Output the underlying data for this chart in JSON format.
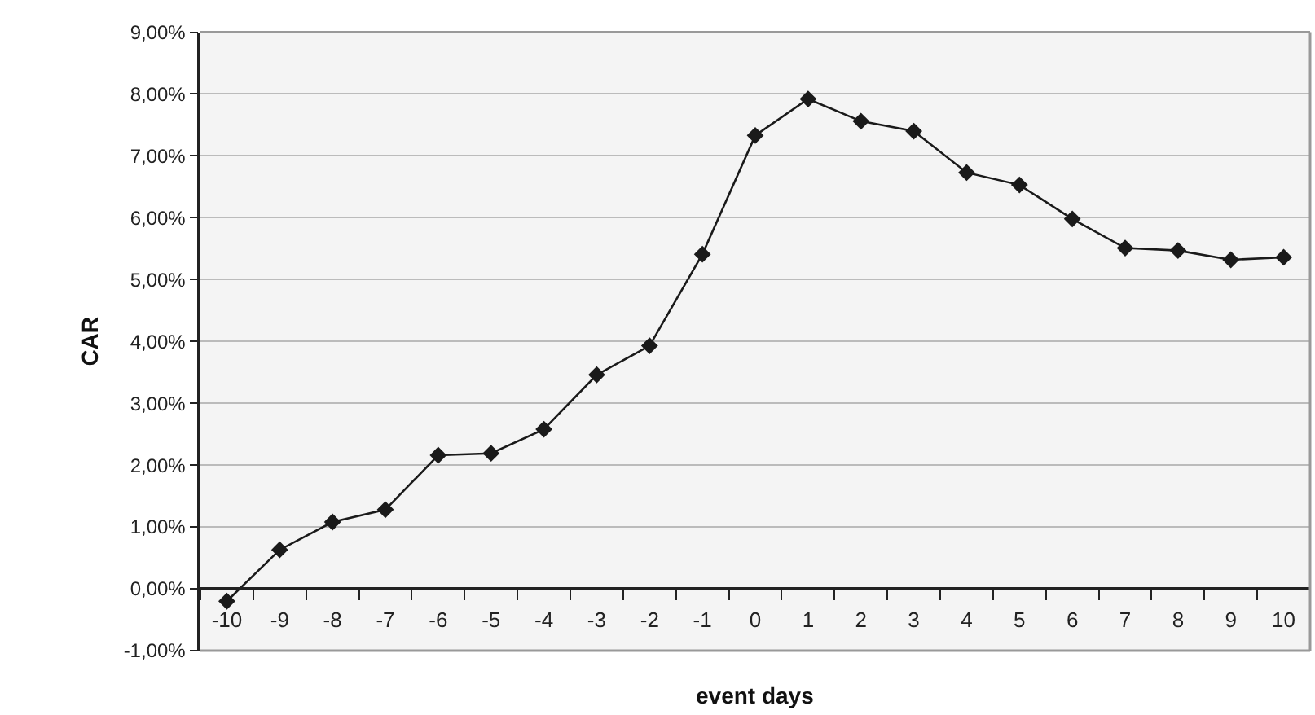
{
  "chart_data": {
    "type": "line",
    "xlabel": "event days",
    "ylabel": "CAR",
    "categories": [
      "-10",
      "-9",
      "-8",
      "-7",
      "-6",
      "-5",
      "-4",
      "-3",
      "-2",
      "-1",
      "0",
      "1",
      "2",
      "3",
      "4",
      "5",
      "6",
      "7",
      "8",
      "9",
      "10"
    ],
    "series": [
      {
        "color": "#1a1a1a",
        "values": [
          -0.2,
          0.63,
          1.08,
          1.28,
          2.16,
          2.19,
          2.58,
          3.46,
          3.93,
          5.41,
          7.33,
          7.92,
          7.56,
          7.4,
          6.73,
          6.53,
          5.98,
          5.51,
          5.47,
          5.32,
          5.36
        ]
      }
    ],
    "ylim": [
      -1,
      9
    ],
    "yticks": [
      {
        "value": -1,
        "label": "-1,00%"
      },
      {
        "value": 0,
        "label": "0,00%"
      },
      {
        "value": 1,
        "label": "1,00%"
      },
      {
        "value": 2,
        "label": "2,00%"
      },
      {
        "value": 3,
        "label": "3,00%"
      },
      {
        "value": 4,
        "label": "4,00%"
      },
      {
        "value": 5,
        "label": "5,00%"
      },
      {
        "value": 6,
        "label": "6,00%"
      },
      {
        "value": 7,
        "label": "7,00%"
      },
      {
        "value": 8,
        "label": "8,00%"
      },
      {
        "value": 9,
        "label": "9,00%"
      }
    ],
    "grid": "y",
    "marker": "diamond",
    "line_style": "solid"
  }
}
